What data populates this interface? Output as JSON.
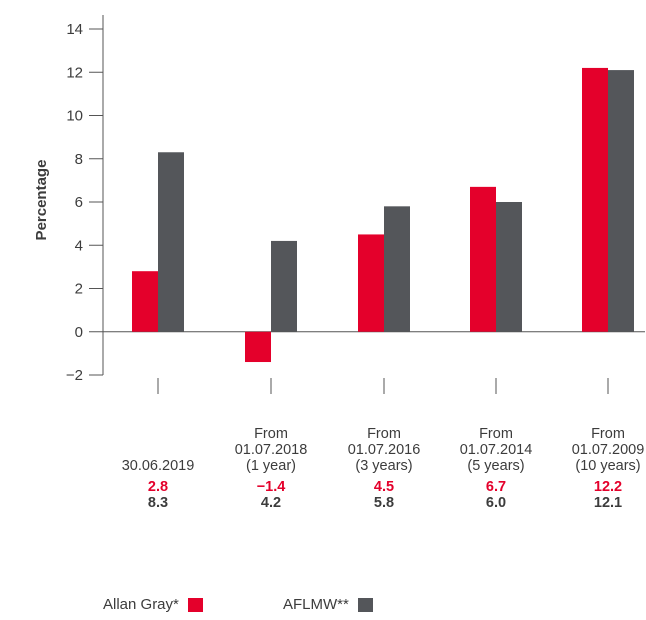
{
  "chart_data": {
    "type": "bar",
    "ylabel": "Percentage",
    "ylim": [
      -2,
      14
    ],
    "yticks": [
      14,
      12,
      10,
      8,
      6,
      4,
      2,
      0,
      -2
    ],
    "ytick_labels": [
      "14",
      "12",
      "10",
      "8",
      "6",
      "4",
      "2",
      "0",
      "−2"
    ],
    "categories": [
      [
        "30.06.2019"
      ],
      [
        "From",
        "01.07.2018",
        "(1 year)"
      ],
      [
        "From",
        "01.07.2016",
        "(3 years)"
      ],
      [
        "From",
        "01.07.2014",
        "(5 years)"
      ],
      [
        "From",
        "01.07.2009",
        "(10 years)"
      ]
    ],
    "series": [
      {
        "name": "Allan Gray*",
        "color": "#e4002b",
        "values": [
          2.8,
          -1.4,
          4.5,
          6.7,
          12.2
        ],
        "labels": [
          "2.8",
          "−1.4",
          "4.5",
          "6.7",
          "12.2"
        ]
      },
      {
        "name": "AFLMW**",
        "color": "#54565a",
        "values": [
          8.3,
          4.2,
          5.8,
          6.0,
          12.1
        ],
        "labels": [
          "8.3",
          "4.2",
          "5.8",
          "6.0",
          "12.1"
        ]
      }
    ],
    "grid": false,
    "legend": "bottom"
  }
}
